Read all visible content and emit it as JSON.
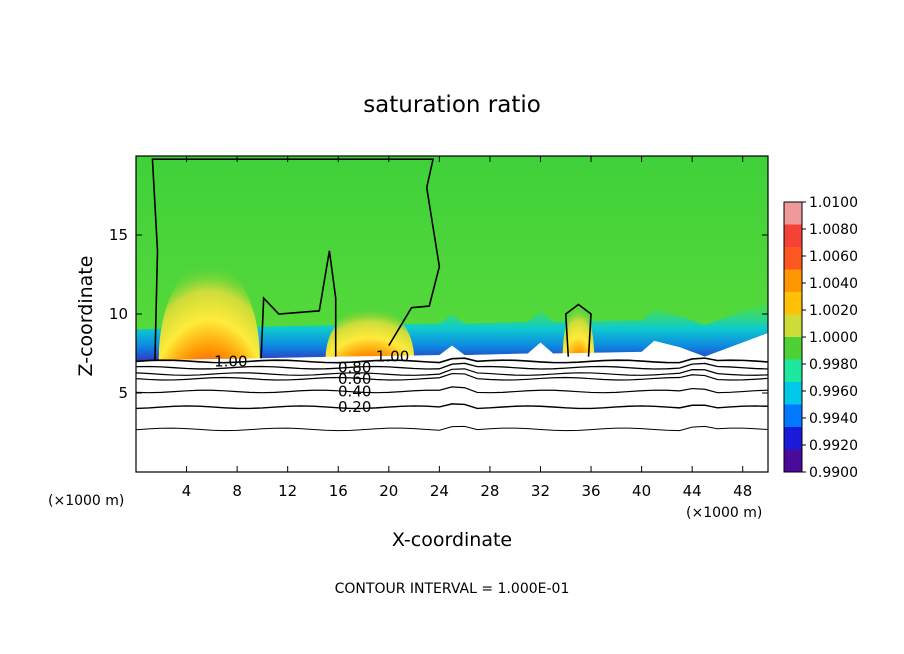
{
  "chart_data": {
    "type": "heatmap",
    "title": "saturation ratio",
    "xlabel": "X-coordinate",
    "ylabel": "Z-coordinate",
    "x_unit_left": "(×1000 m)",
    "x_unit_right": "(×1000 m)",
    "footer": "CONTOUR INTERVAL = 1.000E-01",
    "xlim": [
      0,
      50
    ],
    "ylim": [
      0,
      20
    ],
    "x_ticks": [
      4,
      8,
      12,
      16,
      20,
      24,
      28,
      32,
      36,
      40,
      44,
      48
    ],
    "y_ticks": [
      5,
      10,
      15
    ],
    "colorbar": {
      "min": 0.99,
      "max": 1.01,
      "labels": [
        "1.0100",
        "1.0080",
        "1.0060",
        "1.0040",
        "1.0020",
        "1.0000",
        "0.9980",
        "0.9960",
        "0.9940",
        "0.9920",
        "0.9900"
      ],
      "colors": [
        "#ef9a9a",
        "#f44336",
        "#ff5722",
        "#ff9800",
        "#ffc107",
        "#cddc39",
        "#4cd137",
        "#1ee8a0",
        "#00c8e8",
        "#0078ff",
        "#1a1ad8",
        "#4a0a9a"
      ]
    },
    "contour_labels": [
      {
        "text": "1.00",
        "x": 7.5,
        "y": 7.0
      },
      {
        "text": "1.00",
        "x": 20.3,
        "y": 7.3
      },
      {
        "text": "0.80",
        "x": 17.3,
        "y": 6.6
      },
      {
        "text": "0.60",
        "x": 17.3,
        "y": 5.9
      },
      {
        "text": "0.40",
        "x": 17.3,
        "y": 5.1
      },
      {
        "text": "0.20",
        "x": 17.3,
        "y": 4.1
      }
    ],
    "humps": [
      {
        "x": 5.8,
        "width": 8.0,
        "z_top": 13.3
      },
      {
        "x": 18.5,
        "width": 7.0,
        "z_top": 10.5
      },
      {
        "x": 35.0,
        "width": 2.5,
        "z_top": 10.6
      }
    ]
  }
}
